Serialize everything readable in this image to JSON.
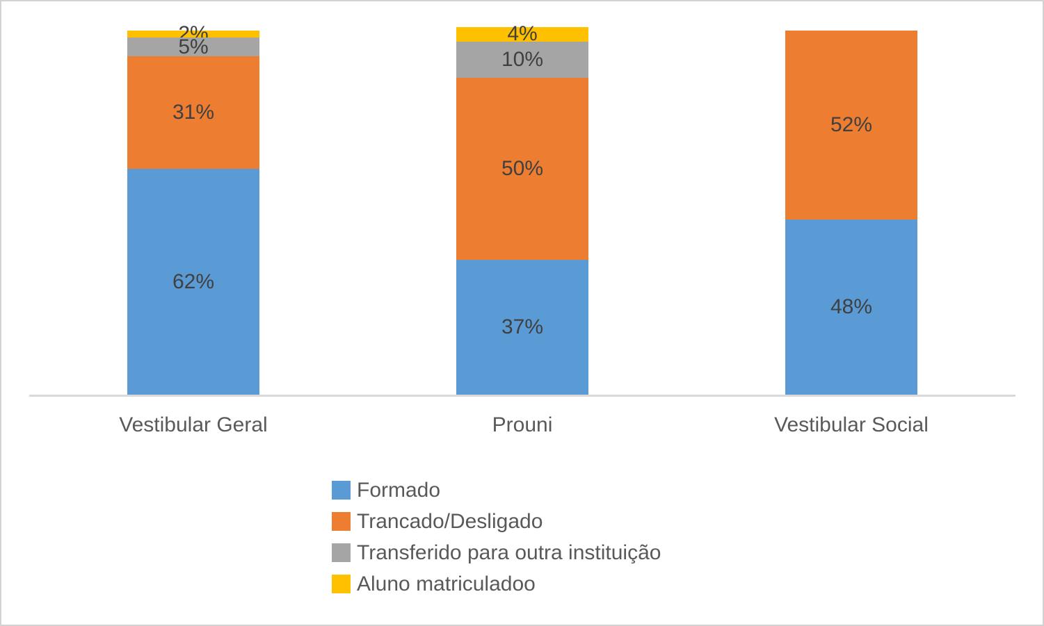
{
  "chart_data": {
    "type": "bar",
    "stacked": true,
    "orientation": "vertical",
    "title": "",
    "xlabel": "",
    "ylabel": "",
    "ylim": [
      0,
      100
    ],
    "grid": false,
    "legend_position": "bottom-center-left",
    "data_label_format": "{value}%",
    "categories": [
      "Vestibular Geral",
      "Prouni",
      "Vestibular Social"
    ],
    "series": [
      {
        "name": "Formado",
        "color": "#5B9BD5",
        "values": [
          62,
          37,
          48
        ]
      },
      {
        "name": "Trancado/Desligado",
        "color": "#ED7D31",
        "values": [
          31,
          50,
          52
        ]
      },
      {
        "name": "Transferido para outra instituição",
        "color": "#A5A5A5",
        "values": [
          5,
          10,
          0
        ]
      },
      {
        "name": "Aluno matriculadoo",
        "color": "#FFC000",
        "values": [
          2,
          4,
          0
        ]
      }
    ],
    "colors": {
      "axis_line": "#d9d9d9",
      "data_label_text": "#404040",
      "category_label_text": "#595959",
      "legend_label_text": "#595959",
      "frame_border": "#d2d2d2",
      "background": "#ffffff"
    }
  }
}
